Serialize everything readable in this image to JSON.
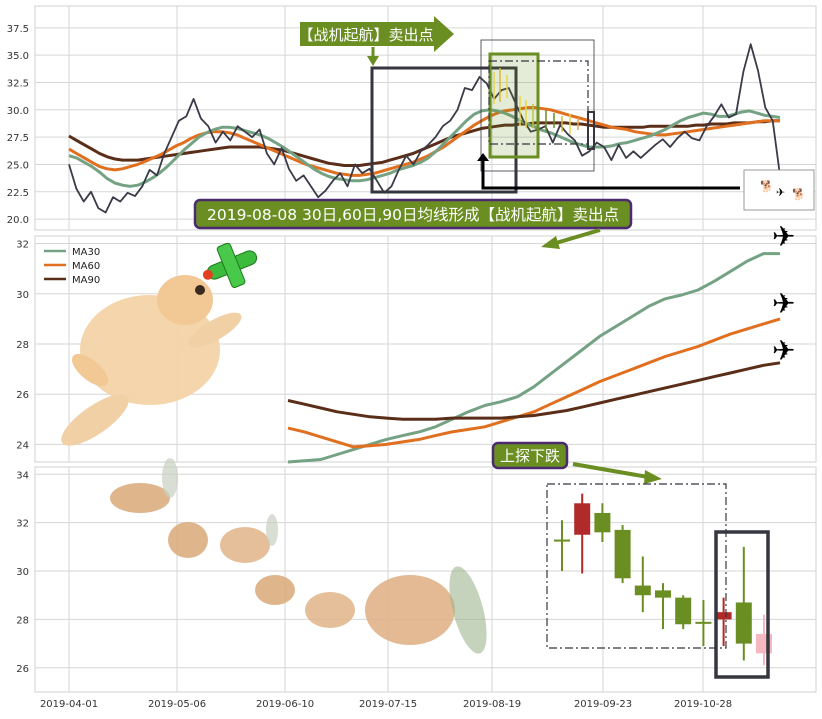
{
  "colors": {
    "price": "#3a3a48",
    "ma30": "#74a283",
    "ma60": "#e06f1f",
    "ma90": "#5a2e19",
    "panel_bg": "#ffffff",
    "grid": "#d6d6d6",
    "callout_green": "#6b8e23",
    "callout_border": "#4b2a6e",
    "box_dark": "#35363f",
    "candle_up": "#6b8e23",
    "candle_down": "#b02a2a",
    "candle_pink": "#f4b8c0"
  },
  "chart_data": [
    {
      "type": "line",
      "panel": "price",
      "x_labels": [
        "2019-04-01",
        "2019-05-06",
        "2019-06-10",
        "2019-07-15",
        "2019-08-19",
        "2019-09-23",
        "2019-10-28"
      ],
      "yticks": [
        "20.0",
        "22.5",
        "25.0",
        "27.5",
        "30.0",
        "32.5",
        "35.0",
        "37.5"
      ],
      "ylim": [
        19,
        39.5
      ],
      "series": [
        {
          "key": "price",
          "values": [
            25.0,
            22.8,
            21.6,
            22.5,
            21.0,
            20.6,
            22.0,
            21.6,
            22.4,
            22.1,
            23.0,
            24.5,
            24.0,
            26.0,
            27.5,
            29.0,
            29.4,
            31.0,
            29.2,
            28.5,
            27.0,
            28.0,
            27.2,
            28.5,
            28.0,
            27.5,
            28.2,
            26.0,
            25.0,
            26.5,
            24.6,
            23.5,
            24.0,
            23.0,
            22.0,
            22.6,
            23.5,
            24.2,
            23.0,
            25.0,
            24.2,
            24.6,
            23.5,
            22.4,
            23.0,
            24.5,
            25.8,
            25.0,
            26.2,
            26.8,
            27.5,
            28.5,
            29.0,
            30.0,
            32.0,
            31.8,
            33.0,
            32.4,
            31.0,
            31.8,
            32.0,
            30.5,
            29.0,
            28.0,
            28.2,
            28.5,
            27.0,
            28.6,
            27.8,
            27.2,
            25.8,
            26.2,
            27.0,
            26.6,
            25.4,
            26.8,
            25.6,
            26.2,
            25.6,
            26.2,
            26.8,
            27.3,
            26.6,
            27.4,
            28.0,
            27.4,
            27.2,
            28.5,
            29.4,
            30.5,
            29.3,
            29.6,
            33.5,
            36.0,
            33.6,
            30.2,
            29.0,
            24.0
          ]
        },
        {
          "key": "ma30",
          "values": [
            25.8,
            25.6,
            25.2,
            24.8,
            24.3,
            23.7,
            23.3,
            23.1,
            23.0,
            23.1,
            23.4,
            23.8,
            24.3,
            24.9,
            25.6,
            26.3,
            26.9,
            27.5,
            27.9,
            28.2,
            28.4,
            28.4,
            28.3,
            28.1,
            27.9,
            27.7,
            27.4,
            27.0,
            26.6,
            26.1,
            25.6,
            25.1,
            24.6,
            24.2,
            23.9,
            23.7,
            23.6,
            23.5,
            23.5,
            23.6,
            23.8,
            24.0,
            24.2,
            24.5,
            24.7,
            24.9,
            25.2,
            25.6,
            26.2,
            26.9,
            27.6,
            28.3,
            29.0,
            29.6,
            29.9,
            30.0,
            29.9,
            29.7,
            29.4,
            29.0,
            28.7,
            28.4,
            28.1,
            27.9,
            27.6,
            27.3,
            27.0,
            26.8,
            26.6,
            26.6,
            26.6,
            26.7,
            26.9,
            27.0,
            27.2,
            27.4,
            27.6,
            27.9,
            28.2,
            28.6,
            29.0,
            29.3,
            29.5,
            29.7,
            29.6,
            29.4,
            29.4,
            29.6,
            29.8,
            29.9,
            29.7,
            29.5,
            29.4,
            29.3
          ]
        },
        {
          "key": "ma60",
          "values": [
            26.4,
            26.0,
            25.6,
            25.2,
            24.8,
            24.6,
            24.5,
            24.6,
            24.8,
            25.0,
            25.3,
            25.6,
            25.9,
            26.3,
            26.7,
            27.0,
            27.4,
            27.7,
            27.9,
            28.0,
            28.0,
            27.9,
            27.7,
            27.4,
            27.1,
            26.8,
            26.5,
            26.2,
            25.9,
            25.6,
            25.3,
            25.0,
            24.8,
            24.6,
            24.4,
            24.2,
            24.1,
            24.0,
            24.0,
            24.1,
            24.2,
            24.4,
            24.6,
            24.8,
            25.0,
            25.2,
            25.5,
            25.8,
            26.2,
            26.6,
            27.1,
            27.6,
            28.1,
            28.6,
            29.0,
            29.4,
            29.7,
            29.9,
            30.0,
            30.1,
            30.2,
            30.2,
            30.1,
            30.0,
            29.8,
            29.6,
            29.4,
            29.2,
            29.0,
            28.8,
            28.6,
            28.4,
            28.3,
            28.2,
            28.0,
            27.9,
            27.8,
            27.7,
            27.7,
            27.8,
            27.9,
            28.0,
            28.1,
            28.2,
            28.3,
            28.4,
            28.5,
            28.6,
            28.7,
            28.8,
            28.9,
            29.0,
            29.0,
            29.0
          ]
        },
        {
          "key": "ma90",
          "values": [
            27.6,
            27.2,
            26.8,
            26.4,
            26.0,
            25.7,
            25.5,
            25.4,
            25.4,
            25.4,
            25.5,
            25.6,
            25.7,
            25.8,
            25.9,
            26.0,
            26.1,
            26.2,
            26.3,
            26.4,
            26.5,
            26.6,
            26.6,
            26.6,
            26.6,
            26.6,
            26.5,
            26.4,
            26.3,
            26.1,
            25.9,
            25.7,
            25.5,
            25.3,
            25.1,
            25.0,
            24.9,
            24.9,
            24.9,
            25.0,
            25.1,
            25.2,
            25.4,
            25.6,
            25.8,
            26.0,
            26.3,
            26.6,
            26.9,
            27.2,
            27.5,
            27.7,
            27.9,
            28.1,
            28.3,
            28.4,
            28.5,
            28.6,
            28.6,
            28.7,
            28.7,
            28.8,
            28.8,
            28.8,
            28.8,
            28.8,
            28.7,
            28.7,
            28.6,
            28.5,
            28.4,
            28.4,
            28.4,
            28.4,
            28.4,
            28.4,
            28.5,
            28.5,
            28.5,
            28.5,
            28.5,
            28.5,
            28.6,
            28.6,
            28.7,
            28.7,
            28.7,
            28.8,
            28.8,
            28.8,
            28.9,
            28.9,
            29.0,
            29.0
          ]
        }
      ]
    },
    {
      "type": "line",
      "panel": "moving_averages",
      "yticks": [
        "24",
        "26",
        "28",
        "30",
        "32"
      ],
      "ylim": [
        23.3,
        32.3
      ],
      "legend": [
        "MA30",
        "MA60",
        "MA90"
      ],
      "series": [
        {
          "name": "MA30",
          "key": "ma30",
          "values": [
            23.3,
            23.35,
            23.4,
            23.6,
            23.8,
            24.0,
            24.2,
            24.35,
            24.5,
            24.7,
            25.0,
            25.3,
            25.55,
            25.7,
            25.9,
            26.3,
            26.8,
            27.3,
            27.8,
            28.3,
            28.7,
            29.1,
            29.5,
            29.8,
            29.95,
            30.15,
            30.5,
            30.9,
            31.3,
            31.6,
            31.6
          ]
        },
        {
          "name": "MA60",
          "key": "ma60",
          "values": [
            24.65,
            24.5,
            24.3,
            24.1,
            23.9,
            23.95,
            24.0,
            24.1,
            24.2,
            24.35,
            24.5,
            24.6,
            24.7,
            24.9,
            25.1,
            25.3,
            25.6,
            25.9,
            26.2,
            26.5,
            26.75,
            27.0,
            27.25,
            27.5,
            27.7,
            27.9,
            28.15,
            28.4,
            28.6,
            28.8,
            29.0
          ]
        },
        {
          "name": "MA90",
          "key": "ma90",
          "values": [
            25.75,
            25.6,
            25.45,
            25.3,
            25.2,
            25.1,
            25.05,
            25.0,
            25.0,
            25.0,
            25.05,
            25.05,
            25.05,
            25.05,
            25.1,
            25.15,
            25.25,
            25.35,
            25.5,
            25.65,
            25.8,
            25.95,
            26.1,
            26.25,
            26.4,
            26.55,
            26.7,
            26.85,
            27.0,
            27.15,
            27.25
          ]
        }
      ]
    },
    {
      "type": "candlestick",
      "panel": "candles",
      "yticks": [
        "26",
        "28",
        "30",
        "32",
        "34"
      ],
      "ylim": [
        25.0,
        34.3
      ],
      "candles": [
        {
          "o": 31.3,
          "c": 31.25,
          "h": 32.1,
          "l": 30.0,
          "color": "up"
        },
        {
          "o": 31.5,
          "c": 32.8,
          "h": 33.2,
          "l": 29.9,
          "color": "down"
        },
        {
          "o": 31.6,
          "c": 32.4,
          "h": 32.8,
          "l": 31.2,
          "color": "up"
        },
        {
          "o": 29.7,
          "c": 31.7,
          "h": 31.9,
          "l": 29.5,
          "color": "up"
        },
        {
          "o": 29.4,
          "c": 29.0,
          "h": 30.6,
          "l": 28.3,
          "color": "up"
        },
        {
          "o": 29.2,
          "c": 28.9,
          "h": 29.5,
          "l": 27.6,
          "color": "up"
        },
        {
          "o": 27.8,
          "c": 28.9,
          "h": 29.0,
          "l": 27.6,
          "color": "up"
        },
        {
          "o": 27.9,
          "c": 27.9,
          "h": 28.8,
          "l": 26.9,
          "color": "up"
        },
        {
          "o": 28.0,
          "c": 28.3,
          "h": 28.9,
          "l": 26.9,
          "color": "down"
        },
        {
          "o": 27.0,
          "c": 28.7,
          "h": 31.0,
          "l": 26.3,
          "color": "up"
        },
        {
          "o": 26.6,
          "c": 27.4,
          "h": 28.2,
          "l": 26.1,
          "color": "pink"
        }
      ]
    }
  ],
  "callouts": {
    "top_arrow": "【战机起航】卖出点",
    "date_banner": "2019-08-08 30日,60日,90日均线形成【战机起航】卖出点",
    "bottom_label": "上探下跌"
  },
  "icons": [
    "airplane-icon",
    "dog-illustration",
    "toy-plane-icon"
  ]
}
